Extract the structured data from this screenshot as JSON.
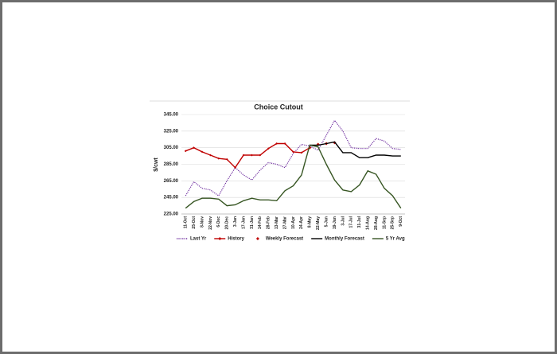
{
  "chart_data": {
    "type": "line",
    "title": "Choice Cutout",
    "y_label": "$/cwt",
    "categories": [
      "11-Oct",
      "25-Oct",
      "8-Nov",
      "22-Nov",
      "6-Dec",
      "20-Dec",
      "3-Jan",
      "17-Jan",
      "31-Jan",
      "14-Feb",
      "28-Feb",
      "13-Mar",
      "27-Mar",
      "10-Apr",
      "24-Apr",
      "8-May",
      "22-May",
      "5-Jun",
      "19-Jun",
      "3-Jul",
      "17-Jul",
      "31-Jul",
      "14-Aug",
      "28-Aug",
      "11-Sep",
      "25-Sep",
      "9-Oct"
    ],
    "ylim": [
      225,
      345
    ],
    "yticks": [
      {
        "value": 225,
        "label": "225.00"
      },
      {
        "value": 245,
        "label": "245.00"
      },
      {
        "value": 265,
        "label": "265.00"
      },
      {
        "value": 285,
        "label": "285.00"
      },
      {
        "value": 305,
        "label": "305.00"
      },
      {
        "value": 325,
        "label": "325.00"
      },
      {
        "value": 345,
        "label": "345.00"
      }
    ],
    "grid": true,
    "legend": "bottom",
    "series": [
      {
        "name": "Last Yr",
        "color": "#7030a0",
        "dash": "dotted",
        "values": [
          247,
          264,
          256,
          254,
          247,
          265,
          281,
          272,
          266,
          278,
          287,
          285,
          281,
          298,
          309,
          307,
          302,
          320,
          338,
          325,
          305,
          304,
          304,
          316,
          313,
          304,
          303
        ]
      },
      {
        "name": "History",
        "color": "#c00000",
        "marker": "diamond",
        "values": [
          301,
          305,
          300,
          296,
          292,
          291,
          281,
          296,
          296,
          296,
          304,
          310,
          310,
          300,
          299,
          305,
          null,
          null,
          null,
          null,
          null,
          null,
          null,
          null,
          null,
          null,
          null
        ]
      },
      {
        "name": "Weekly Forecast",
        "color": "#c00000",
        "marker": "diamond",
        "line": false,
        "values": [
          null,
          null,
          null,
          null,
          null,
          null,
          null,
          null,
          null,
          null,
          null,
          null,
          null,
          null,
          null,
          305,
          309,
          310,
          311,
          null,
          null,
          null,
          null,
          null,
          null,
          null,
          null
        ]
      },
      {
        "name": "Monthly Forecast",
        "color": "#000000",
        "values": [
          null,
          null,
          null,
          null,
          null,
          null,
          null,
          null,
          null,
          null,
          null,
          null,
          null,
          null,
          null,
          308,
          308,
          310,
          312,
          299,
          299,
          293,
          293,
          296,
          296,
          295,
          295
        ]
      },
      {
        "name": "5 Yr Avg",
        "color": "#375623",
        "values": [
          232,
          240,
          244,
          244,
          243,
          235,
          236,
          241,
          244,
          242,
          242,
          241,
          253,
          259,
          272,
          308,
          306,
          285,
          266,
          254,
          252,
          260,
          277,
          273,
          256,
          247,
          232
        ]
      }
    ]
  }
}
